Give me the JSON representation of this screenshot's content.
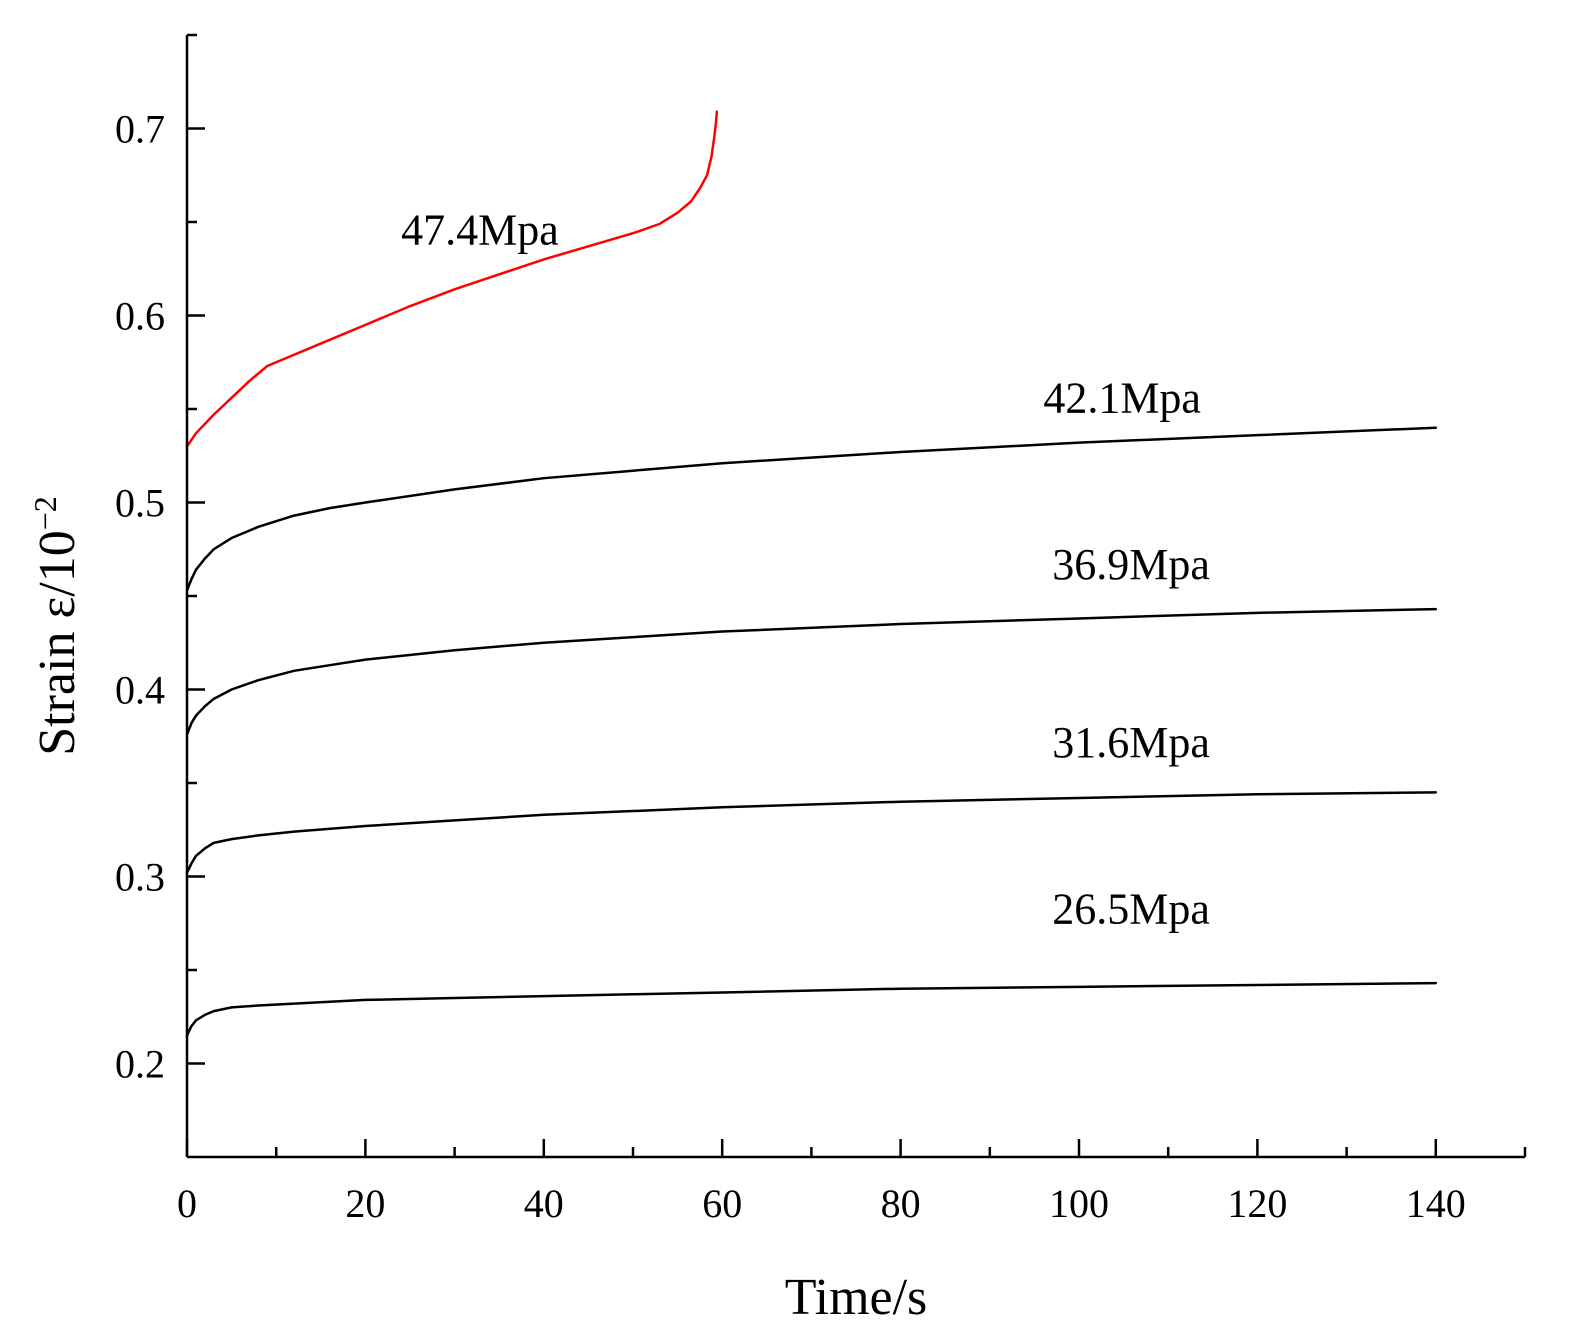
{
  "chart_data": {
    "type": "line",
    "title": "",
    "xlabel": "Time/s",
    "ylabel": "Strain ε/10",
    "ylabel_exponent": "−2",
    "xlim": [
      0,
      150
    ],
    "ylim": [
      0.15,
      0.75
    ],
    "x_ticks": [
      0,
      20,
      40,
      60,
      80,
      100,
      120,
      140
    ],
    "x_tick_labels": [
      "0",
      "20",
      "40",
      "60",
      "80",
      "100",
      "120",
      "140"
    ],
    "x_minor_ticks": [
      10,
      30,
      50,
      70,
      90,
      110,
      130,
      150
    ],
    "y_ticks": [
      0.2,
      0.3,
      0.4,
      0.5,
      0.6,
      0.7
    ],
    "y_tick_labels": [
      "0.2",
      "0.3",
      "0.4",
      "0.5",
      "0.6",
      "0.7"
    ],
    "y_minor_ticks": [
      0.25,
      0.35,
      0.45,
      0.55,
      0.65,
      0.75
    ],
    "grid": false,
    "series": [
      {
        "name": "47.4Mpa",
        "color": "#ff0000",
        "x": [
          0,
          1,
          2,
          3,
          5,
          7,
          9,
          12,
          15,
          20,
          25,
          30,
          35,
          40,
          45,
          50,
          53,
          55,
          56.5,
          57.5,
          58.3,
          58.8,
          59.1,
          59.3,
          59.4
        ],
        "y": [
          0.53,
          0.537,
          0.542,
          0.547,
          0.556,
          0.565,
          0.573,
          0.579,
          0.585,
          0.595,
          0.605,
          0.614,
          0.622,
          0.63,
          0.637,
          0.644,
          0.649,
          0.655,
          0.661,
          0.668,
          0.675,
          0.685,
          0.695,
          0.703,
          0.709
        ]
      },
      {
        "name": "42.1Mpa",
        "color": "#000000",
        "x": [
          0,
          0.5,
          1,
          2,
          3,
          5,
          8,
          12,
          16,
          20,
          30,
          40,
          50,
          60,
          80,
          100,
          120,
          140
        ],
        "y": [
          0.453,
          0.459,
          0.464,
          0.47,
          0.475,
          0.481,
          0.487,
          0.493,
          0.497,
          0.5,
          0.507,
          0.513,
          0.517,
          0.521,
          0.527,
          0.532,
          0.536,
          0.54
        ]
      },
      {
        "name": "36.9Mpa",
        "color": "#000000",
        "x": [
          0,
          0.5,
          1,
          2,
          3,
          5,
          8,
          12,
          16,
          20,
          30,
          40,
          50,
          60,
          80,
          100,
          120,
          140
        ],
        "y": [
          0.376,
          0.382,
          0.386,
          0.391,
          0.395,
          0.4,
          0.405,
          0.41,
          0.413,
          0.416,
          0.421,
          0.425,
          0.428,
          0.431,
          0.435,
          0.438,
          0.441,
          0.443
        ]
      },
      {
        "name": "31.6Mpa",
        "color": "#000000",
        "x": [
          0,
          0.5,
          1,
          2,
          3,
          5,
          8,
          12,
          20,
          30,
          40,
          50,
          60,
          80,
          100,
          120,
          140
        ],
        "y": [
          0.302,
          0.307,
          0.311,
          0.315,
          0.318,
          0.32,
          0.322,
          0.324,
          0.327,
          0.33,
          0.333,
          0.335,
          0.337,
          0.34,
          0.342,
          0.344,
          0.345
        ]
      },
      {
        "name": "26.5Mpa",
        "color": "#000000",
        "x": [
          0,
          0.5,
          1,
          2,
          3,
          5,
          8,
          12,
          20,
          30,
          40,
          50,
          60,
          80,
          100,
          120,
          140
        ],
        "y": [
          0.215,
          0.22,
          0.223,
          0.226,
          0.228,
          0.23,
          0.231,
          0.232,
          0.234,
          0.235,
          0.236,
          0.237,
          0.238,
          0.24,
          0.241,
          0.242,
          0.243
        ]
      }
    ],
    "annotations": [
      {
        "text": "47.4Mpa",
        "x": 24,
        "y": 0.638
      },
      {
        "text": "42.1Mpa",
        "x": 96,
        "y": 0.548
      },
      {
        "text": "36.9Mpa",
        "x": 97,
        "y": 0.459
      },
      {
        "text": "31.6Mpa",
        "x": 97,
        "y": 0.364
      },
      {
        "text": "26.5Mpa",
        "x": 97,
        "y": 0.275
      }
    ]
  }
}
